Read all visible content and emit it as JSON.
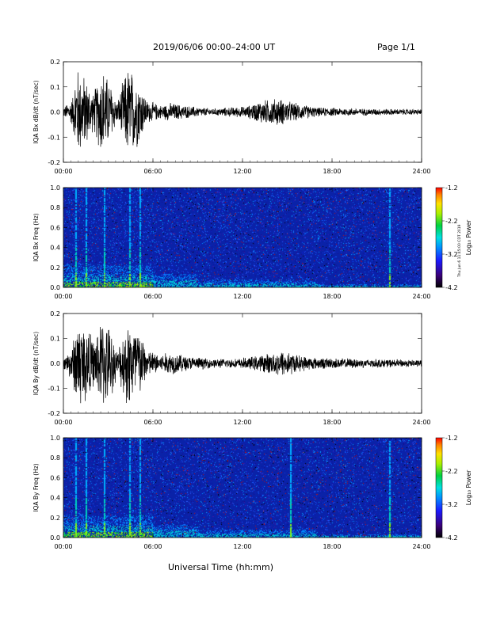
{
  "header": {
    "title": "2019/06/06  00:00–24:00 UT",
    "page": "Page 1/1"
  },
  "footer": {
    "xlabel": "Universal Time (hh:mm)"
  },
  "stamp": "Thu Jun 6 11:45:00 CDT 2019",
  "chart_data": [
    {
      "type": "line",
      "ylabel": "IQA Bx dB/dt (nT/sec)",
      "ylim": [
        -0.2,
        0.2
      ],
      "yticks": [
        "0.2",
        "0.1",
        "0.0",
        "-0.1",
        "-0.2"
      ],
      "xticks": [
        "00:00",
        "06:00",
        "12:00",
        "18:00",
        "24:00"
      ],
      "xlim_hours": [
        0,
        24
      ],
      "series": [
        {
          "color": "#000000",
          "envelope": [
            [
              0,
              0.02
            ],
            [
              0.6,
              0.06
            ],
            [
              0.9,
              0.2
            ],
            [
              1.5,
              0.15
            ],
            [
              2.0,
              0.08
            ],
            [
              2.6,
              0.2
            ],
            [
              3.2,
              0.12
            ],
            [
              3.6,
              0.04
            ],
            [
              4.3,
              0.2
            ],
            [
              5.0,
              0.15
            ],
            [
              5.6,
              0.05
            ],
            [
              6.5,
              0.03
            ],
            [
              7.2,
              0.04
            ],
            [
              8.5,
              0.025
            ],
            [
              10,
              0.015
            ],
            [
              11,
              0.02
            ],
            [
              12.3,
              0.025
            ],
            [
              13.2,
              0.05
            ],
            [
              14.4,
              0.06
            ],
            [
              15.5,
              0.04
            ],
            [
              17,
              0.02
            ],
            [
              20,
              0.015
            ],
            [
              24,
              0.012
            ]
          ]
        }
      ]
    },
    {
      "type": "heatmap",
      "ylabel": "IQA Bx Freq (Hz)",
      "ylim": [
        0.0,
        1.0
      ],
      "yticks": [
        "1.0",
        "0.8",
        "0.6",
        "0.4",
        "0.2",
        "0.0"
      ],
      "xticks": [
        "00:00",
        "06:00",
        "12:00",
        "18:00",
        "24:00"
      ],
      "colorbar": {
        "label": "Log₁₀ Power",
        "range": [
          -4.2,
          -1.2
        ],
        "ticks": [
          "-1.2",
          "-2.2",
          "-3.2",
          "-4.2"
        ]
      },
      "vertical_lines_hours": [
        0.8,
        1.5,
        2.7,
        4.4,
        5.1,
        21.8
      ]
    },
    {
      "type": "line",
      "ylabel": "IQA By dB/dt (nT/sec)",
      "ylim": [
        -0.2,
        0.2
      ],
      "yticks": [
        "0.2",
        "0.1",
        "0.0",
        "-0.1",
        "-0.2"
      ],
      "xticks": [
        "00:00",
        "06:00",
        "12:00",
        "18:00",
        "24:00"
      ],
      "xlim_hours": [
        0,
        24
      ],
      "series": [
        {
          "color": "#000000",
          "envelope": [
            [
              0,
              0.02
            ],
            [
              0.6,
              0.08
            ],
            [
              0.9,
              0.2
            ],
            [
              1.5,
              0.18
            ],
            [
              2.0,
              0.1
            ],
            [
              2.6,
              0.2
            ],
            [
              3.2,
              0.15
            ],
            [
              3.6,
              0.05
            ],
            [
              4.3,
              0.2
            ],
            [
              5.0,
              0.17
            ],
            [
              5.6,
              0.06
            ],
            [
              6.5,
              0.04
            ],
            [
              7.2,
              0.05
            ],
            [
              8.5,
              0.03
            ],
            [
              10,
              0.02
            ],
            [
              11.5,
              0.02
            ],
            [
              12.3,
              0.025
            ],
            [
              13.5,
              0.04
            ],
            [
              14.8,
              0.06
            ],
            [
              15.8,
              0.035
            ],
            [
              17,
              0.025
            ],
            [
              20,
              0.02
            ],
            [
              24,
              0.015
            ]
          ]
        }
      ]
    },
    {
      "type": "heatmap",
      "ylabel": "IQA By Freq (Hz)",
      "ylim": [
        0.0,
        1.0
      ],
      "yticks": [
        "1.0",
        "0.8",
        "0.6",
        "0.4",
        "0.2",
        "0.0"
      ],
      "xticks": [
        "00:00",
        "06:00",
        "12:00",
        "18:00",
        "24:00"
      ],
      "colorbar": {
        "label": "Log₁₀ Power",
        "range": [
          -4.2,
          -1.2
        ],
        "ticks": [
          "-1.2",
          "-2.2",
          "-3.2",
          "-4.2"
        ]
      },
      "vertical_lines_hours": [
        0.8,
        1.5,
        2.7,
        4.4,
        5.1,
        15.2,
        21.8
      ]
    }
  ]
}
